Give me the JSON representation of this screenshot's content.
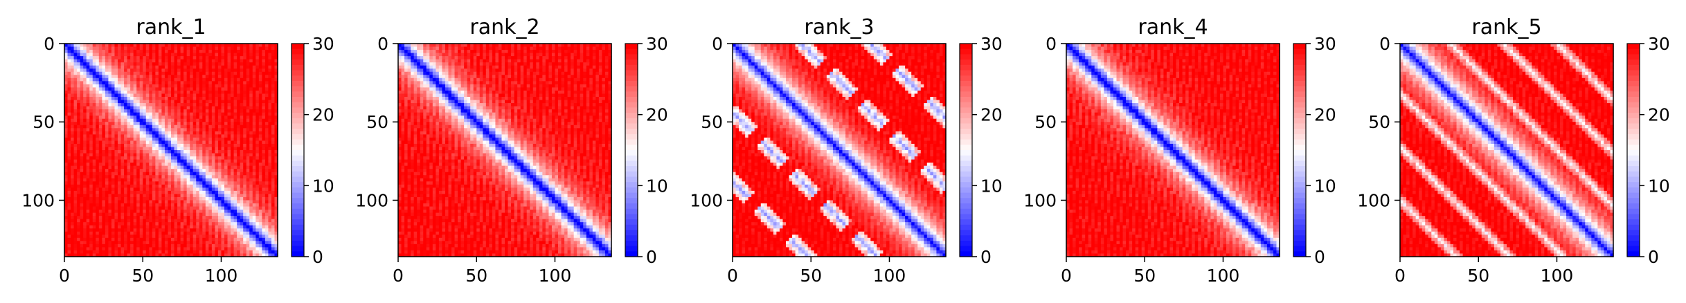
{
  "chart_data": [
    {
      "type": "heatmap",
      "title": "rank_1",
      "pattern": "smooth",
      "x_ticks": [
        "0",
        "50",
        "100"
      ],
      "y_ticks": [
        "0",
        "50",
        "100"
      ],
      "xlim": [
        0,
        136
      ],
      "ylim": [
        136,
        0
      ],
      "colorbar": {
        "ticks": [
          "0",
          "10",
          "20",
          "30"
        ],
        "range": [
          0,
          30
        ],
        "colormap": "bwr"
      }
    },
    {
      "type": "heatmap",
      "title": "rank_2",
      "pattern": "smooth",
      "x_ticks": [
        "0",
        "50",
        "100"
      ],
      "y_ticks": [
        "0",
        "50",
        "100"
      ],
      "xlim": [
        0,
        136
      ],
      "ylim": [
        136,
        0
      ],
      "colorbar": {
        "ticks": [
          "0",
          "10",
          "20",
          "30"
        ],
        "range": [
          0,
          30
        ],
        "colormap": "bwr"
      }
    },
    {
      "type": "heatmap",
      "title": "rank_3",
      "pattern": "blobs",
      "x_ticks": [
        "0",
        "50",
        "100"
      ],
      "y_ticks": [
        "0",
        "50",
        "100"
      ],
      "xlim": [
        0,
        136
      ],
      "ylim": [
        136,
        0
      ],
      "colorbar": {
        "ticks": [
          "0",
          "10",
          "20",
          "30"
        ],
        "range": [
          0,
          30
        ],
        "colormap": "bwr"
      }
    },
    {
      "type": "heatmap",
      "title": "rank_4",
      "pattern": "smooth",
      "x_ticks": [
        "0",
        "50",
        "100"
      ],
      "y_ticks": [
        "0",
        "50",
        "100"
      ],
      "xlim": [
        0,
        136
      ],
      "ylim": [
        136,
        0
      ],
      "colorbar": {
        "ticks": [
          "0",
          "10",
          "20",
          "30"
        ],
        "range": [
          0,
          30
        ],
        "colormap": "bwr"
      }
    },
    {
      "type": "heatmap",
      "title": "rank_5",
      "pattern": "stripes",
      "x_ticks": [
        "0",
        "50",
        "100"
      ],
      "y_ticks": [
        "0",
        "50",
        "100"
      ],
      "xlim": [
        0,
        136
      ],
      "ylim": [
        136,
        0
      ],
      "colorbar": {
        "ticks": [
          "0",
          "10",
          "20",
          "30"
        ],
        "range": [
          0,
          30
        ],
        "colormap": "bwr"
      }
    }
  ],
  "colors": {
    "low": "#0000ff",
    "mid": "#ffffff",
    "high": "#ff0000"
  }
}
